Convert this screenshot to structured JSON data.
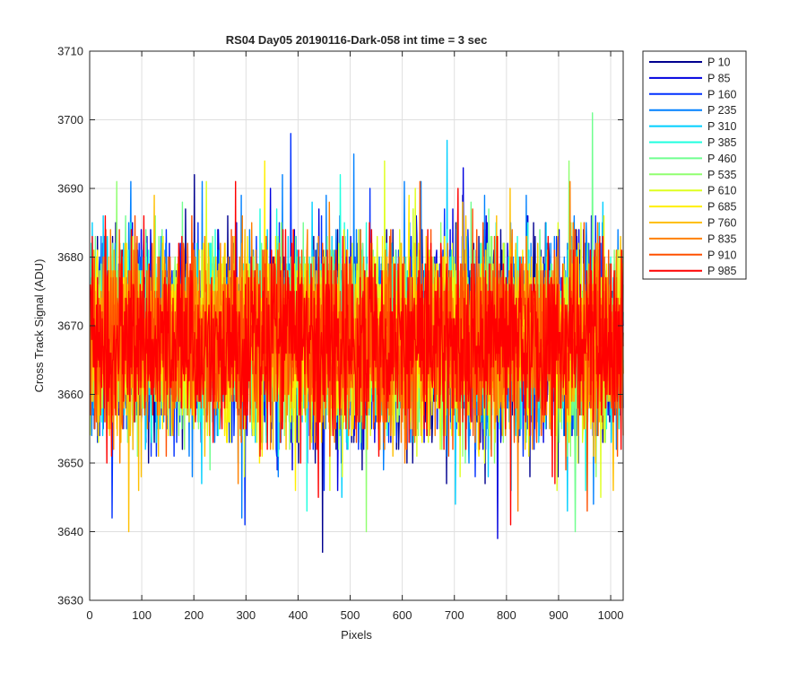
{
  "chart_data": {
    "type": "line",
    "title": "RS04 Day05 20190116-Dark-058 int time = 3 sec",
    "xlabel": "Pixels",
    "ylabel": "Cross Track Signal (ADU)",
    "xlim": [
      0,
      1024
    ],
    "ylim": [
      3630,
      3710
    ],
    "x_ticks": [
      0,
      100,
      200,
      300,
      400,
      500,
      600,
      700,
      800,
      900,
      1000
    ],
    "y_ticks": [
      3630,
      3640,
      3650,
      3660,
      3670,
      3680,
      3690,
      3700,
      3710
    ],
    "grid": true,
    "legend_position": "outside-right",
    "n_points": 1024,
    "series": [
      {
        "name": "P 10",
        "color": "#00008f",
        "mean": 3668,
        "spread": 7.0,
        "min": 3637,
        "max": 3692
      },
      {
        "name": "P 85",
        "color": "#0000df",
        "mean": 3668,
        "spread": 7.0,
        "min": 3639,
        "max": 3693
      },
      {
        "name": "P 160",
        "color": "#0030ff",
        "mean": 3668,
        "spread": 7.0,
        "min": 3641,
        "max": 3698
      },
      {
        "name": "P 235",
        "color": "#0080ff",
        "mean": 3668,
        "spread": 7.0,
        "min": 3642,
        "max": 3695
      },
      {
        "name": "P 310",
        "color": "#00cfff",
        "mean": 3668,
        "spread": 6.5,
        "min": 3643,
        "max": 3697
      },
      {
        "name": "P 385",
        "color": "#20ffdf",
        "mean": 3668,
        "spread": 6.5,
        "min": 3643,
        "max": 3692
      },
      {
        "name": "P 460",
        "color": "#70ff8f",
        "mean": 3668,
        "spread": 6.5,
        "min": 3640,
        "max": 3701
      },
      {
        "name": "P 535",
        "color": "#90ff70",
        "mean": 3668,
        "spread": 6.5,
        "min": 3640,
        "max": 3694
      },
      {
        "name": "P 610",
        "color": "#dfff20",
        "mean": 3668,
        "spread": 6.5,
        "min": 3645,
        "max": 3694
      },
      {
        "name": "P 685",
        "color": "#ffef00",
        "mean": 3668,
        "spread": 6.5,
        "min": 3646,
        "max": 3694
      },
      {
        "name": "P 760",
        "color": "#ffbf00",
        "mean": 3668,
        "spread": 6.5,
        "min": 3640,
        "max": 3690
      },
      {
        "name": "P 835",
        "color": "#ff8000",
        "mean": 3668,
        "spread": 6.5,
        "min": 3643,
        "max": 3691
      },
      {
        "name": "P 910",
        "color": "#ff5000",
        "mean": 3668,
        "spread": 6.5,
        "min": 3643,
        "max": 3691
      },
      {
        "name": "P 985",
        "color": "#ff0000",
        "mean": 3668,
        "spread": 6.5,
        "min": 3641,
        "max": 3691
      }
    ]
  }
}
